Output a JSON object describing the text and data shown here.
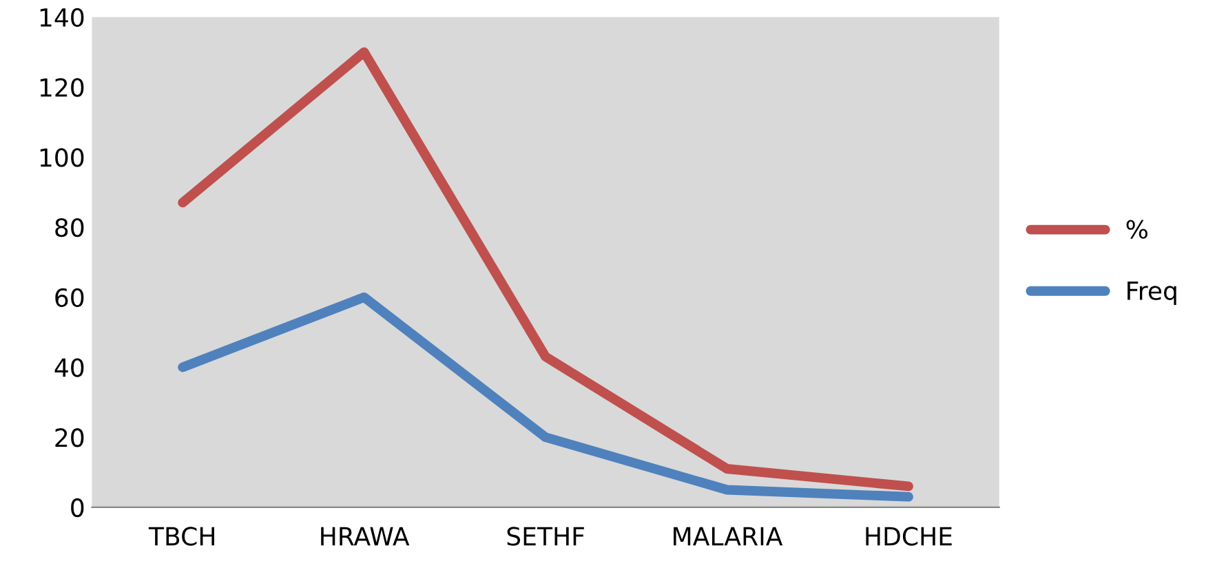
{
  "chart_data": {
    "type": "line",
    "categories": [
      "TBCH",
      "HRAWA",
      "SETHF",
      "MALARIA",
      "HDCHE"
    ],
    "series": [
      {
        "name": "%",
        "color": "#c0504d",
        "values": [
          87,
          130,
          43,
          11,
          6
        ]
      },
      {
        "name": "Freq",
        "color": "#4f81bd",
        "values": [
          40,
          60,
          20,
          5,
          3
        ]
      }
    ],
    "ylim": [
      0,
      140
    ],
    "yticks": [
      0,
      20,
      40,
      60,
      80,
      100,
      120,
      140
    ],
    "grid": false,
    "legend": "right",
    "marker": "none",
    "line_style": "solid"
  }
}
